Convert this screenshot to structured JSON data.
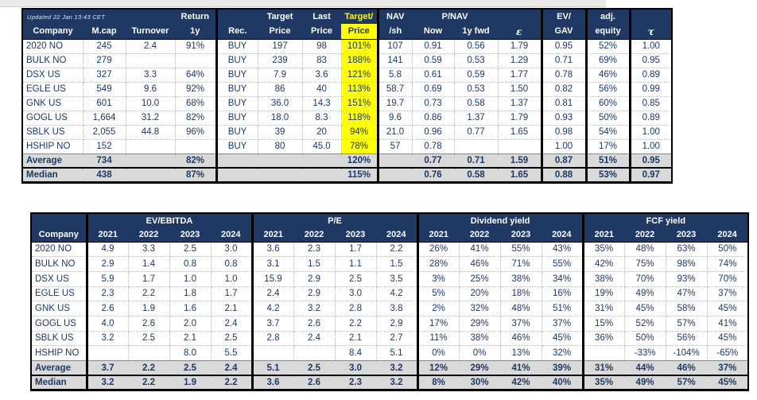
{
  "meta": {
    "updated": "Updated 22 Jan 13:43 CET"
  },
  "colors": {
    "header_navy": "#1F3864",
    "text_navy": "#1F3864",
    "highlight_yellow": "#FFFF00",
    "aggregate_gray": "#D9D9D9"
  },
  "top_table": {
    "header": {
      "company": "Company",
      "mcap": "M.cap",
      "turnover": "Turnover",
      "return_l1": "Return",
      "return_l2": "1y",
      "rec": "Rec.",
      "target_l1": "Target",
      "target_l2": "Price",
      "last_l1": "Last",
      "last_l2": "Price",
      "tp_l1": "Target/",
      "tp_l2": "Price",
      "nav_l1": "NAV",
      "nav_l2": "/sh",
      "now": "Now",
      "pnav": "P/NAV",
      "fwd": "1y fwd",
      "eps": "ε",
      "ev_l1": "EV/",
      "ev_l2": "GAV",
      "adj_l1": "adj.",
      "adj_l2": "equity",
      "tau": "τ"
    },
    "rows": [
      {
        "company": "2020 NO",
        "mcap": "245",
        "turnover": "2.4",
        "ret": "91%",
        "rec": "BUY",
        "target": "197",
        "last": "98",
        "tp": "101%",
        "nav": "107",
        "now": "0.91",
        "fwd": "0.56",
        "eps": "1.79",
        "ev": "0.95",
        "adj": "52%",
        "tau": "1.00"
      },
      {
        "company": "BULK NO",
        "mcap": "279",
        "turnover": "",
        "ret": "",
        "rec": "BUY",
        "target": "239",
        "last": "83",
        "tp": "188%",
        "nav": "141",
        "now": "0.59",
        "fwd": "0.53",
        "eps": "1.29",
        "ev": "0.71",
        "adj": "69%",
        "tau": "0.95"
      },
      {
        "company": "DSX US",
        "mcap": "327",
        "turnover": "3.3",
        "ret": "64%",
        "rec": "BUY",
        "target": "7.9",
        "last": "3.6",
        "tp": "121%",
        "nav": "5.8",
        "now": "0.61",
        "fwd": "0.59",
        "eps": "1.77",
        "ev": "0.78",
        "adj": "46%",
        "tau": "0.89"
      },
      {
        "company": "EGLE US",
        "mcap": "549",
        "turnover": "9.6",
        "ret": "92%",
        "rec": "BUY",
        "target": "86",
        "last": "40",
        "tp": "113%",
        "nav": "58.7",
        "now": "0.69",
        "fwd": "0.53",
        "eps": "1.50",
        "ev": "0.82",
        "adj": "56%",
        "tau": "0.99"
      },
      {
        "company": "GNK US",
        "mcap": "601",
        "turnover": "10.0",
        "ret": "68%",
        "rec": "BUY",
        "target": "36.0",
        "last": "14.3",
        "tp": "151%",
        "nav": "19.7",
        "now": "0.73",
        "fwd": "0.58",
        "eps": "1.37",
        "ev": "0.81",
        "adj": "60%",
        "tau": "0.85"
      },
      {
        "company": "GOGL US",
        "mcap": "1,664",
        "turnover": "31.2",
        "ret": "82%",
        "rec": "BUY",
        "target": "18.0",
        "last": "8.3",
        "tp": "118%",
        "nav": "9.6",
        "now": "0.86",
        "fwd": "1.37",
        "eps": "1.79",
        "ev": "0.93",
        "adj": "50%",
        "tau": "0.89"
      },
      {
        "company": "SBLK US",
        "mcap": "2,055",
        "turnover": "44.8",
        "ret": "96%",
        "rec": "BUY",
        "target": "39",
        "last": "20",
        "tp": "94%",
        "nav": "21.0",
        "now": "0.96",
        "fwd": "0.77",
        "eps": "1.65",
        "ev": "0.98",
        "adj": "54%",
        "tau": "1.00"
      },
      {
        "company": "HSHIP NO",
        "mcap": "152",
        "turnover": "",
        "ret": "",
        "rec": "BUY",
        "target": "80",
        "last": "45.0",
        "tp": "78%",
        "nav": "57",
        "now": "0.78",
        "fwd": "",
        "eps": "",
        "ev": "1.00",
        "adj": "17%",
        "tau": "1.00"
      }
    ],
    "average": {
      "company": "Average",
      "mcap": "734",
      "turnover": "",
      "ret": "82%",
      "rec": "",
      "target": "",
      "last": "",
      "tp": "120%",
      "nav": "",
      "now": "0.77",
      "fwd": "0.71",
      "eps": "1.59",
      "ev": "0.87",
      "adj": "51%",
      "tau": "0.95"
    },
    "median": {
      "company": "Median",
      "mcap": "438",
      "turnover": "",
      "ret": "87%",
      "rec": "",
      "target": "",
      "last": "",
      "tp": "115%",
      "nav": "",
      "now": "0.76",
      "fwd": "0.58",
      "eps": "1.65",
      "ev": "0.88",
      "adj": "53%",
      "tau": "0.97"
    }
  },
  "bottom_table": {
    "company_header": "Company",
    "groups": [
      "EV/EBITDA",
      "P/E",
      "Dividend yield",
      "FCF yield"
    ],
    "years": [
      "2021",
      "2022",
      "2023",
      "2024"
    ],
    "rows": [
      {
        "company": "2020 NO",
        "ev": [
          "4.9",
          "3.3",
          "2.5",
          "3.0"
        ],
        "pe": [
          "3.6",
          "2.3",
          "1.7",
          "2.2"
        ],
        "div": [
          "26%",
          "41%",
          "55%",
          "43%"
        ],
        "fcf": [
          "35%",
          "48%",
          "63%",
          "50%"
        ]
      },
      {
        "company": "BULK NO",
        "ev": [
          "2.9",
          "1.4",
          "0.8",
          "0.8"
        ],
        "pe": [
          "3.1",
          "1.5",
          "1.1",
          "1.5"
        ],
        "div": [
          "28%",
          "46%",
          "71%",
          "55%"
        ],
        "fcf": [
          "42%",
          "75%",
          "98%",
          "74%"
        ]
      },
      {
        "company": "DSX US",
        "ev": [
          "5.9",
          "1.7",
          "1.0",
          "1.0"
        ],
        "pe": [
          "15.9",
          "2.9",
          "2.5",
          "3.5"
        ],
        "div": [
          "3%",
          "25%",
          "38%",
          "34%"
        ],
        "fcf": [
          "38%",
          "70%",
          "93%",
          "70%"
        ]
      },
      {
        "company": "EGLE US",
        "ev": [
          "2.3",
          "2.2",
          "1.8",
          "1.7"
        ],
        "pe": [
          "2.4",
          "2.9",
          "3.0",
          "4.2"
        ],
        "div": [
          "5%",
          "20%",
          "18%",
          "16%"
        ],
        "fcf": [
          "19%",
          "49%",
          "47%",
          "37%"
        ]
      },
      {
        "company": "GNK US",
        "ev": [
          "2.6",
          "1.9",
          "1.6",
          "2.1"
        ],
        "pe": [
          "4.2",
          "3.2",
          "2.8",
          "3.8"
        ],
        "div": [
          "2%",
          "32%",
          "48%",
          "51%"
        ],
        "fcf": [
          "31%",
          "45%",
          "58%",
          "45%"
        ]
      },
      {
        "company": "GOGL US",
        "ev": [
          "4.0",
          "2.6",
          "2.0",
          "2.4"
        ],
        "pe": [
          "3.7",
          "2.6",
          "2.2",
          "2.9"
        ],
        "div": [
          "17%",
          "29%",
          "37%",
          "37%"
        ],
        "fcf": [
          "15%",
          "52%",
          "57%",
          "41%"
        ]
      },
      {
        "company": "SBLK US",
        "ev": [
          "3.2",
          "2.5",
          "2.1",
          "2.5"
        ],
        "pe": [
          "2.8",
          "2.4",
          "2.1",
          "2.7"
        ],
        "div": [
          "11%",
          "38%",
          "46%",
          "45%"
        ],
        "fcf": [
          "36%",
          "50%",
          "56%",
          "45%"
        ]
      },
      {
        "company": "HSHIP NO",
        "ev": [
          "",
          "",
          "8.0",
          "5.5"
        ],
        "pe": [
          "",
          "",
          "8.4",
          "5.1"
        ],
        "div": [
          "0%",
          "0%",
          "13%",
          "32%"
        ],
        "fcf": [
          "",
          "-33%",
          "-104%",
          "-65%"
        ]
      }
    ],
    "average": {
      "company": "Average",
      "ev": [
        "3.7",
        "2.2",
        "2.5",
        "2.4"
      ],
      "pe": [
        "5.1",
        "2.5",
        "3.0",
        "3.2"
      ],
      "div": [
        "12%",
        "29%",
        "41%",
        "39%"
      ],
      "fcf": [
        "31%",
        "44%",
        "46%",
        "37%"
      ]
    },
    "median": {
      "company": "Median",
      "ev": [
        "3.2",
        "2.2",
        "1.9",
        "2.2"
      ],
      "pe": [
        "3.6",
        "2.6",
        "2.3",
        "3.2"
      ],
      "div": [
        "8%",
        "30%",
        "42%",
        "40%"
      ],
      "fcf": [
        "35%",
        "49%",
        "57%",
        "45%"
      ]
    }
  }
}
